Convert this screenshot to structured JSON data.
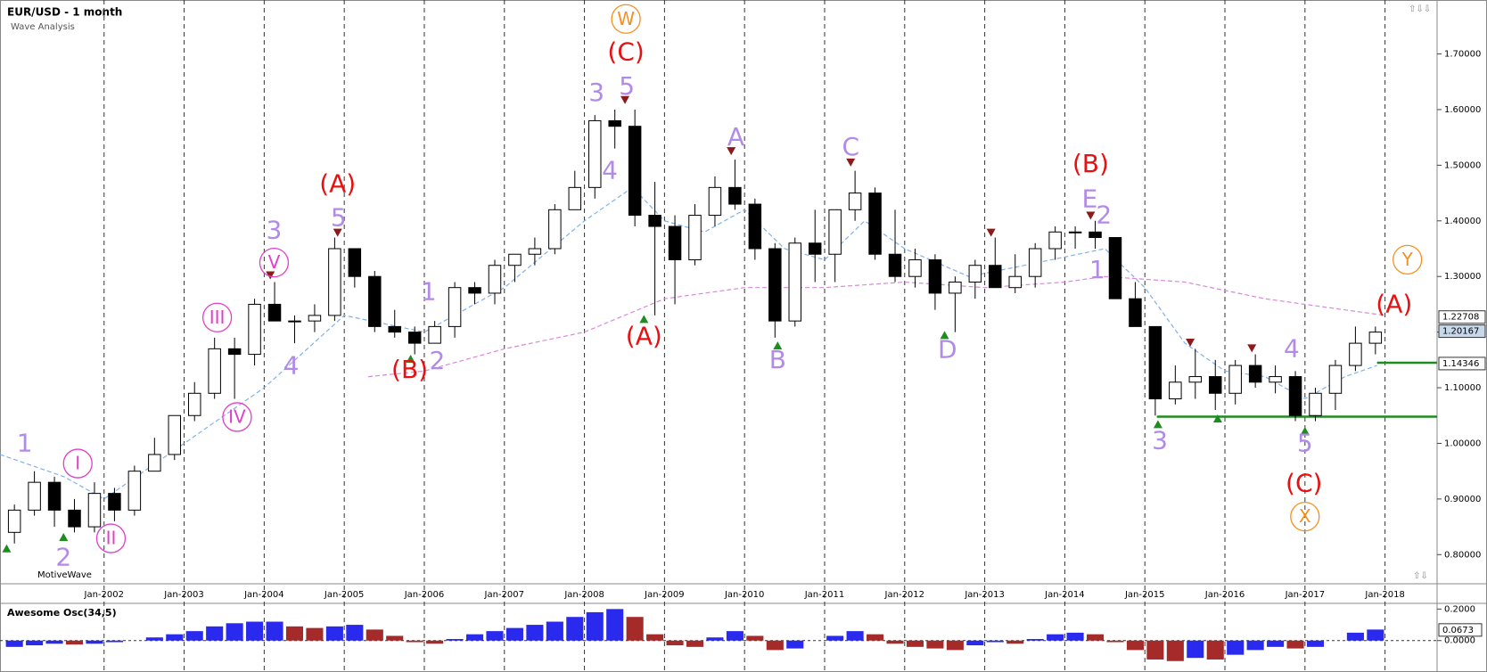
{
  "chart_data": {
    "type": "candlestick",
    "title": "EUR/USD - 1 month",
    "subtitle": "Wave Analysis",
    "brand": "MotiveWave",
    "x": [
      2000.88,
      2001.13,
      2001.38,
      2001.63,
      2001.88,
      2002.13,
      2002.38,
      2002.63,
      2002.88,
      2003.13,
      2003.38,
      2003.63,
      2003.88,
      2004.13,
      2004.38,
      2004.63,
      2004.88,
      2005.13,
      2005.38,
      2005.63,
      2005.88,
      2006.13,
      2006.38,
      2006.63,
      2006.88,
      2007.13,
      2007.38,
      2007.63,
      2007.88,
      2008.13,
      2008.38,
      2008.63,
      2008.88,
      2009.13,
      2009.38,
      2009.63,
      2009.88,
      2010.13,
      2010.38,
      2010.63,
      2010.88,
      2011.13,
      2011.38,
      2011.63,
      2011.88,
      2012.13,
      2012.38,
      2012.63,
      2012.88,
      2013.13,
      2013.38,
      2013.63,
      2013.88,
      2014.13,
      2014.38,
      2014.63,
      2014.88,
      2015.13,
      2015.38,
      2015.63,
      2015.88,
      2016.13,
      2016.38,
      2016.63,
      2016.88,
      2017.13,
      2017.38,
      2017.63,
      2017.88
    ],
    "open": [
      0.84,
      0.88,
      0.93,
      0.88,
      0.85,
      0.91,
      0.88,
      0.95,
      0.98,
      1.05,
      1.09,
      1.17,
      1.16,
      1.25,
      1.22,
      1.22,
      1.23,
      1.35,
      1.3,
      1.21,
      1.2,
      1.18,
      1.21,
      1.28,
      1.27,
      1.32,
      1.34,
      1.35,
      1.42,
      1.46,
      1.58,
      1.57,
      1.41,
      1.39,
      1.33,
      1.41,
      1.46,
      1.43,
      1.35,
      1.22,
      1.36,
      1.34,
      1.42,
      1.45,
      1.34,
      1.3,
      1.33,
      1.27,
      1.29,
      1.32,
      1.28,
      1.3,
      1.35,
      1.38,
      1.38,
      1.37,
      1.26,
      1.21,
      1.08,
      1.11,
      1.12,
      1.09,
      1.14,
      1.11,
      1.12,
      1.05,
      1.09,
      1.14,
      1.18
    ],
    "high": [
      0.89,
      0.95,
      0.94,
      0.9,
      0.93,
      0.92,
      0.96,
      1.01,
      1.05,
      1.11,
      1.19,
      1.19,
      1.26,
      1.29,
      1.23,
      1.25,
      1.37,
      1.35,
      1.31,
      1.24,
      1.21,
      1.22,
      1.29,
      1.29,
      1.33,
      1.34,
      1.37,
      1.43,
      1.49,
      1.59,
      1.6,
      1.6,
      1.47,
      1.41,
      1.43,
      1.48,
      1.51,
      1.44,
      1.36,
      1.37,
      1.42,
      1.42,
      1.49,
      1.46,
      1.42,
      1.35,
      1.34,
      1.3,
      1.33,
      1.37,
      1.34,
      1.36,
      1.39,
      1.39,
      1.4,
      1.37,
      1.29,
      1.21,
      1.14,
      1.17,
      1.15,
      1.15,
      1.16,
      1.14,
      1.13,
      1.1,
      1.15,
      1.21,
      1.21
    ],
    "low": [
      0.82,
      0.87,
      0.85,
      0.84,
      0.84,
      0.86,
      0.87,
      0.95,
      0.97,
      1.04,
      1.08,
      1.08,
      1.14,
      1.22,
      1.18,
      1.2,
      1.22,
      1.28,
      1.2,
      1.19,
      1.16,
      1.18,
      1.19,
      1.25,
      1.25,
      1.29,
      1.32,
      1.34,
      1.42,
      1.44,
      1.53,
      1.39,
      1.23,
      1.25,
      1.32,
      1.39,
      1.42,
      1.33,
      1.19,
      1.21,
      1.29,
      1.29,
      1.4,
      1.33,
      1.29,
      1.28,
      1.24,
      1.2,
      1.26,
      1.28,
      1.27,
      1.28,
      1.33,
      1.35,
      1.35,
      1.26,
      1.21,
      1.05,
      1.07,
      1.08,
      1.06,
      1.07,
      1.1,
      1.09,
      1.04,
      1.04,
      1.06,
      1.13,
      1.16
    ],
    "close": [
      0.88,
      0.93,
      0.88,
      0.85,
      0.91,
      0.88,
      0.95,
      0.98,
      1.05,
      1.09,
      1.17,
      1.16,
      1.25,
      1.22,
      1.22,
      1.23,
      1.35,
      1.3,
      1.21,
      1.2,
      1.18,
      1.21,
      1.28,
      1.27,
      1.32,
      1.34,
      1.35,
      1.42,
      1.46,
      1.58,
      1.57,
      1.41,
      1.39,
      1.33,
      1.41,
      1.46,
      1.43,
      1.35,
      1.22,
      1.36,
      1.34,
      1.42,
      1.45,
      1.34,
      1.3,
      1.33,
      1.27,
      1.29,
      1.32,
      1.28,
      1.3,
      1.35,
      1.38,
      1.38,
      1.37,
      1.26,
      1.21,
      1.08,
      1.11,
      1.12,
      1.09,
      1.14,
      1.11,
      1.12,
      1.05,
      1.09,
      1.14,
      1.18,
      1.2
    ],
    "xlim": [
      2000.7,
      2018.65
    ],
    "xticks": [
      {
        "value": 2002,
        "label": "Jan-2002"
      },
      {
        "value": 2003,
        "label": "Jan-2003"
      },
      {
        "value": 2004,
        "label": "Jan-2004"
      },
      {
        "value": 2005,
        "label": "Jan-2005"
      },
      {
        "value": 2006,
        "label": "Jan-2006"
      },
      {
        "value": 2007,
        "label": "Jan-2007"
      },
      {
        "value": 2008,
        "label": "Jan-2008"
      },
      {
        "value": 2009,
        "label": "Jan-2009"
      },
      {
        "value": 2010,
        "label": "Jan-2010"
      },
      {
        "value": 2011,
        "label": "Jan-2011"
      },
      {
        "value": 2012,
        "label": "Jan-2012"
      },
      {
        "value": 2013,
        "label": "Jan-2013"
      },
      {
        "value": 2014,
        "label": "Jan-2014"
      },
      {
        "value": 2015,
        "label": "Jan-2015"
      },
      {
        "value": 2016,
        "label": "Jan-2016"
      },
      {
        "value": 2017,
        "label": "Jan-2017"
      },
      {
        "value": 2018,
        "label": "Jan-2018"
      }
    ],
    "ylim": [
      0.754,
      1.789
    ],
    "yticks": [
      {
        "value": 0.8,
        "label": "0.80000"
      },
      {
        "value": 0.9,
        "label": "0.90000"
      },
      {
        "value": 1.0,
        "label": "1.00000"
      },
      {
        "value": 1.1,
        "label": "1.10000"
      },
      {
        "value": 1.2,
        "label": "1.20000"
      },
      {
        "value": 1.3,
        "label": "1.30000"
      },
      {
        "value": 1.4,
        "label": "1.40000"
      },
      {
        "value": 1.5,
        "label": "1.50000"
      },
      {
        "value": 1.6,
        "label": "1.60000"
      },
      {
        "value": 1.7,
        "label": "1.70000"
      }
    ],
    "moving_averages": [
      {
        "color": "#7fb2ea",
        "x": [
          2000.7,
          2001.5,
          2002.0,
          2003.0,
          2004.0,
          2005.0,
          2006.0,
          2007.0,
          2008.0,
          2008.6,
          2009.0,
          2009.5,
          2010.0,
          2010.5,
          2011.0,
          2011.5,
          2012.0,
          2012.8,
          2013.5,
          2014.5,
          2015.0,
          2015.5,
          2016.0,
          2016.5,
          2017.0,
          2017.5,
          2017.9
        ],
        "values": [
          0.98,
          0.94,
          0.9,
          1.0,
          1.1,
          1.23,
          1.2,
          1.28,
          1.4,
          1.46,
          1.4,
          1.38,
          1.42,
          1.35,
          1.33,
          1.4,
          1.35,
          1.3,
          1.32,
          1.35,
          1.28,
          1.18,
          1.13,
          1.12,
          1.08,
          1.12,
          1.14
        ]
      },
      {
        "color": "#d88ad8",
        "x": [
          2005.3,
          2006.0,
          2007.0,
          2008.0,
          2009.0,
          2010.0,
          2011.0,
          2012.0,
          2013.0,
          2014.0,
          2014.5,
          2015.5,
          2016.5,
          2017.5,
          2018.0
        ],
        "values": [
          1.12,
          1.13,
          1.17,
          1.2,
          1.26,
          1.28,
          1.28,
          1.29,
          1.28,
          1.29,
          1.3,
          1.29,
          1.26,
          1.24,
          1.23
        ]
      }
    ],
    "support_lines": [
      {
        "value": 1.048,
        "from": 2015.15,
        "color": "#1e8c1e"
      },
      {
        "value": 1.145,
        "from": 2017.9,
        "color": "#1e8c1e"
      }
    ],
    "price_markers": [
      {
        "value": 1.22708,
        "label": "1.22708",
        "color": "#ffffff"
      },
      {
        "value": 1.20167,
        "label": "1.20167",
        "color": "#c8d8ec"
      },
      {
        "value": 1.14346,
        "label": "1.14346",
        "color": "#ffffff"
      }
    ],
    "annotations": [
      {
        "text": "1",
        "color": "#b28ae8"
      },
      {
        "text": "I",
        "color": "#e040c8",
        "circled": true
      },
      {
        "text": "2",
        "color": "#b28ae8"
      },
      {
        "text": "II",
        "color": "#e040c8",
        "circled": true
      },
      {
        "text": "III",
        "color": "#e040c8",
        "circled": true
      },
      {
        "text": "IV",
        "color": "#e040c8",
        "circled": true
      },
      {
        "text": "V",
        "color": "#e040c8",
        "circled": true
      },
      {
        "text": "3",
        "color": "#b28ae8"
      },
      {
        "text": "4",
        "color": "#b28ae8"
      },
      {
        "text": "5",
        "color": "#b28ae8"
      },
      {
        "text": "(A)",
        "color": "#e81010"
      },
      {
        "text": "(B)",
        "color": "#e81010"
      },
      {
        "text": "1",
        "color": "#b28ae8"
      },
      {
        "text": "2",
        "color": "#b28ae8"
      },
      {
        "text": "3",
        "color": "#b28ae8"
      },
      {
        "text": "5",
        "color": "#b28ae8"
      },
      {
        "text": "4",
        "color": "#b28ae8"
      },
      {
        "text": "(C)",
        "color": "#e81010"
      },
      {
        "text": "W",
        "color": "#f5901e",
        "circled": true
      },
      {
        "text": "(A)",
        "color": "#e81010"
      },
      {
        "text": "A",
        "color": "#b28ae8"
      },
      {
        "text": "B",
        "color": "#b28ae8"
      },
      {
        "text": "C",
        "color": "#b28ae8"
      },
      {
        "text": "D",
        "color": "#b28ae8"
      },
      {
        "text": "(B)",
        "color": "#e81010"
      },
      {
        "text": "E",
        "color": "#b28ae8"
      },
      {
        "text": "2",
        "color": "#b28ae8"
      },
      {
        "text": "1",
        "color": "#b28ae8"
      },
      {
        "text": "3",
        "color": "#b28ae8"
      },
      {
        "text": "4",
        "color": "#b28ae8"
      },
      {
        "text": "5",
        "color": "#b28ae8"
      },
      {
        "text": "(C)",
        "color": "#e81010"
      },
      {
        "text": "X",
        "color": "#f5901e",
        "circled": true
      },
      {
        "text": "Y",
        "color": "#f5901e",
        "circled": true
      },
      {
        "text": "(A)",
        "color": "#e81010"
      }
    ],
    "oscillator": {
      "title": "Awesome Osc(34,5)",
      "rising_color": "#2a2aee",
      "falling_color": "#a52a2a",
      "values": [
        -0.04,
        -0.03,
        -0.02,
        -0.025,
        -0.02,
        -0.01,
        0.0,
        0.02,
        0.04,
        0.06,
        0.09,
        0.11,
        0.12,
        0.12,
        0.09,
        0.08,
        0.09,
        0.1,
        0.07,
        0.03,
        -0.01,
        -0.02,
        0.01,
        0.04,
        0.06,
        0.08,
        0.1,
        0.12,
        0.15,
        0.18,
        0.2,
        0.15,
        0.04,
        -0.03,
        -0.04,
        0.02,
        0.06,
        0.03,
        -0.06,
        -0.05,
        0.0,
        0.03,
        0.06,
        0.04,
        -0.02,
        -0.04,
        -0.05,
        -0.06,
        -0.03,
        -0.01,
        -0.02,
        0.01,
        0.04,
        0.05,
        0.04,
        -0.01,
        -0.06,
        -0.12,
        -0.13,
        -0.11,
        -0.12,
        -0.09,
        -0.06,
        -0.04,
        -0.05,
        -0.04,
        0.0,
        0.05,
        0.07
      ],
      "ylim": [
        -0.188,
        0.236
      ],
      "yticks": [
        {
          "value": 0.0,
          "label": "0.0000"
        },
        {
          "value": 0.2,
          "label": "0.2000"
        }
      ],
      "marker": {
        "value": 0.0673,
        "label": "0.0673"
      }
    }
  }
}
